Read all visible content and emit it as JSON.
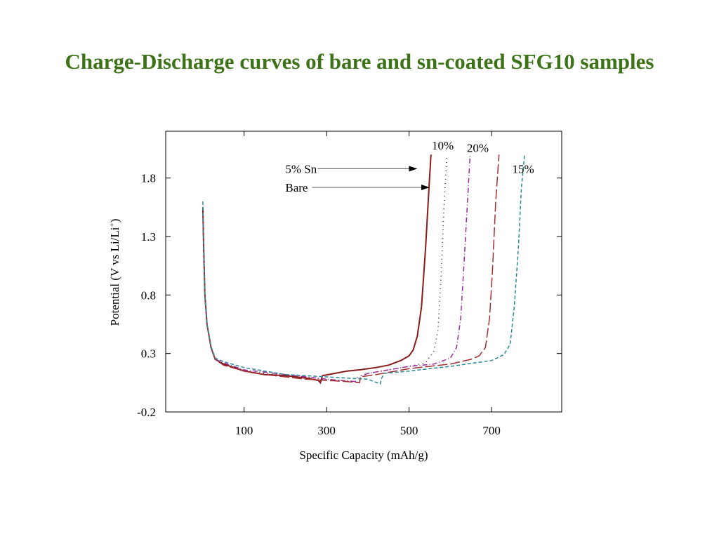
{
  "colors": {
    "title": "#3c7317",
    "bare": "#8b1a1a",
    "sn5": "#4a1030",
    "sn10": "#9a2a9a",
    "sn15": "#2a8a9a",
    "sn20": "#a33030"
  },
  "chart_data": {
    "type": "line",
    "title": "Charge-Discharge curves of bare and sn-coated SFG10 samples",
    "xlabel": "Specific Capacity (mAh/g)",
    "ylabel": "Potential (V vs Li/Li+)",
    "ylabel_main": "Potential (V vs Li/Li",
    "ylabel_sup": "+",
    "ylabel_end": ")",
    "xlim": [
      -90,
      870
    ],
    "ylim": [
      -0.2,
      2.2
    ],
    "xticks": [
      100,
      300,
      500,
      700
    ],
    "xtick_labels": [
      "100",
      "300",
      "500",
      "700"
    ],
    "yticks": [
      -0.2,
      0.3,
      0.8,
      1.3,
      1.8
    ],
    "ytick_labels": [
      "-0.2",
      "0.3",
      "0.8",
      "1.3",
      "1.8"
    ],
    "grid": false,
    "annotations": [
      {
        "text": "5% Sn",
        "x": 200,
        "y": 1.88,
        "arrow_to": [
          520,
          1.88
        ]
      },
      {
        "text": "Bare",
        "x": 200,
        "y": 1.72,
        "arrow_to": [
          550,
          1.72
        ]
      },
      {
        "text": "10%",
        "x": 555,
        "y": 2.08
      },
      {
        "text": "20%",
        "x": 640,
        "y": 2.06
      },
      {
        "text": "15%",
        "x": 750,
        "y": 1.88
      }
    ],
    "series": [
      {
        "key": "bare",
        "dash": "",
        "points": [
          [
            0,
            1.55
          ],
          [
            2,
            1.2
          ],
          [
            5,
            0.8
          ],
          [
            10,
            0.55
          ],
          [
            20,
            0.35
          ],
          [
            30,
            0.25
          ],
          [
            50,
            0.21
          ],
          [
            100,
            0.15
          ],
          [
            150,
            0.12
          ],
          [
            200,
            0.11
          ],
          [
            250,
            0.09
          ],
          [
            280,
            0.07
          ],
          [
            285,
            0.05
          ],
          [
            288,
            0.09
          ],
          [
            290,
            0.11
          ],
          [
            320,
            0.13
          ],
          [
            350,
            0.15
          ],
          [
            380,
            0.16
          ],
          [
            420,
            0.18
          ],
          [
            450,
            0.2
          ],
          [
            480,
            0.24
          ],
          [
            500,
            0.28
          ],
          [
            510,
            0.33
          ],
          [
            520,
            0.45
          ],
          [
            530,
            0.7
          ],
          [
            540,
            1.2
          ],
          [
            548,
            1.7
          ],
          [
            553,
            2.0
          ]
        ]
      },
      {
        "key": "sn5",
        "dash": "1,5",
        "points": [
          [
            0,
            1.5
          ],
          [
            2,
            1.2
          ],
          [
            5,
            0.8
          ],
          [
            10,
            0.55
          ],
          [
            20,
            0.35
          ],
          [
            30,
            0.25
          ],
          [
            50,
            0.21
          ],
          [
            100,
            0.15
          ],
          [
            150,
            0.13
          ],
          [
            200,
            0.11
          ],
          [
            250,
            0.1
          ],
          [
            290,
            0.08
          ],
          [
            330,
            0.07
          ],
          [
            370,
            0.06
          ],
          [
            375,
            0.1
          ],
          [
            400,
            0.13
          ],
          [
            450,
            0.16
          ],
          [
            500,
            0.19
          ],
          [
            540,
            0.22
          ],
          [
            560,
            0.32
          ],
          [
            570,
            0.5
          ],
          [
            578,
            1.0
          ],
          [
            585,
            1.6
          ],
          [
            592,
            2.0
          ]
        ]
      },
      {
        "key": "sn10",
        "dash": "7,3,1,3",
        "points": [
          [
            0,
            1.5
          ],
          [
            2,
            1.2
          ],
          [
            5,
            0.8
          ],
          [
            10,
            0.55
          ],
          [
            20,
            0.35
          ],
          [
            30,
            0.25
          ],
          [
            50,
            0.22
          ],
          [
            100,
            0.16
          ],
          [
            150,
            0.14
          ],
          [
            200,
            0.12
          ],
          [
            250,
            0.1
          ],
          [
            300,
            0.08
          ],
          [
            330,
            0.07
          ],
          [
            370,
            0.06
          ],
          [
            380,
            0.05
          ],
          [
            382,
            0.1
          ],
          [
            400,
            0.13
          ],
          [
            450,
            0.16
          ],
          [
            500,
            0.19
          ],
          [
            560,
            0.21
          ],
          [
            600,
            0.26
          ],
          [
            615,
            0.35
          ],
          [
            625,
            0.6
          ],
          [
            632,
            1.0
          ],
          [
            640,
            1.5
          ],
          [
            648,
            2.0
          ]
        ]
      },
      {
        "key": "sn20",
        "dash": "14,4",
        "points": [
          [
            0,
            1.5
          ],
          [
            2,
            1.2
          ],
          [
            5,
            0.8
          ],
          [
            10,
            0.55
          ],
          [
            20,
            0.35
          ],
          [
            30,
            0.25
          ],
          [
            50,
            0.2
          ],
          [
            100,
            0.15
          ],
          [
            150,
            0.12
          ],
          [
            200,
            0.1
          ],
          [
            250,
            0.08
          ],
          [
            300,
            0.07
          ],
          [
            350,
            0.06
          ],
          [
            380,
            0.05
          ],
          [
            382,
            0.1
          ],
          [
            420,
            0.12
          ],
          [
            500,
            0.17
          ],
          [
            600,
            0.21
          ],
          [
            650,
            0.25
          ],
          [
            670,
            0.28
          ],
          [
            685,
            0.35
          ],
          [
            695,
            0.6
          ],
          [
            702,
            1.0
          ],
          [
            710,
            1.6
          ],
          [
            718,
            2.0
          ]
        ]
      },
      {
        "key": "sn15",
        "dash": "5,3",
        "points": [
          [
            0,
            1.6
          ],
          [
            2,
            1.2
          ],
          [
            5,
            0.8
          ],
          [
            10,
            0.55
          ],
          [
            20,
            0.36
          ],
          [
            30,
            0.26
          ],
          [
            50,
            0.23
          ],
          [
            100,
            0.18
          ],
          [
            150,
            0.15
          ],
          [
            200,
            0.12
          ],
          [
            250,
            0.11
          ],
          [
            300,
            0.1
          ],
          [
            350,
            0.09
          ],
          [
            400,
            0.08
          ],
          [
            430,
            0.04
          ],
          [
            432,
            0.08
          ],
          [
            440,
            0.13
          ],
          [
            500,
            0.15
          ],
          [
            600,
            0.19
          ],
          [
            700,
            0.24
          ],
          [
            730,
            0.29
          ],
          [
            745,
            0.38
          ],
          [
            755,
            0.7
          ],
          [
            765,
            1.2
          ],
          [
            772,
            1.7
          ],
          [
            780,
            2.0
          ]
        ]
      }
    ]
  }
}
